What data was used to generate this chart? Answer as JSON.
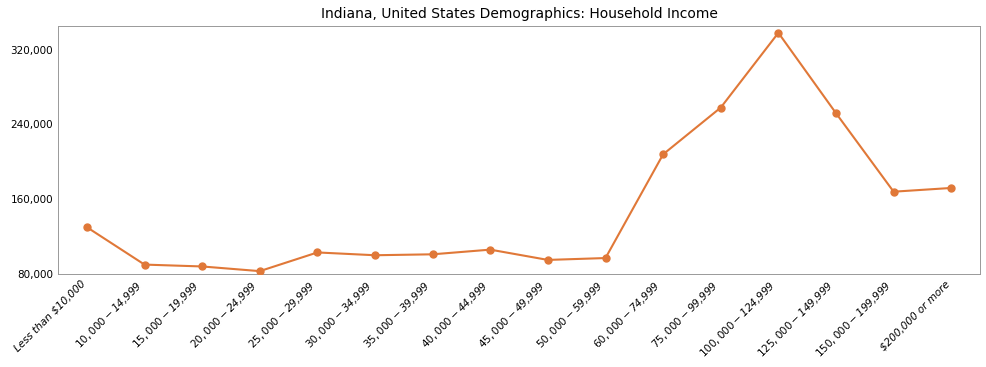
{
  "title": "Indiana, United States Demographics: Household Income",
  "categories": [
    "Less than $10,000",
    "$10,000 - $14,999",
    "$15,000 - $19,999",
    "$20,000 - $24,999",
    "$25,000 - $29,999",
    "$30,000 - $34,999",
    "$35,000 - $39,999",
    "$40,000 - $44,999",
    "$45,000 - $49,999",
    "$50,000 - $59,999",
    "$60,000 - $74,999",
    "$75,000 - $99,999",
    "$100,000 - $124,999",
    "$125,000 - $149,999",
    "$150,000 - $199,999",
    "$200,000 or more"
  ],
  "values": [
    130000,
    90000,
    88000,
    83000,
    103000,
    100000,
    101000,
    106000,
    95000,
    97000,
    208000,
    258000,
    338000,
    252000,
    168000,
    172000
  ],
  "line_color": "#e07838",
  "marker_color": "#e07838",
  "marker_size": 5,
  "ylim": [
    80000,
    345000
  ],
  "yticks": [
    80000,
    160000,
    240000,
    320000
  ],
  "background_color": "#ffffff",
  "title_fontsize": 10,
  "tick_fontsize": 7.5,
  "label_fontstyle": "italic"
}
